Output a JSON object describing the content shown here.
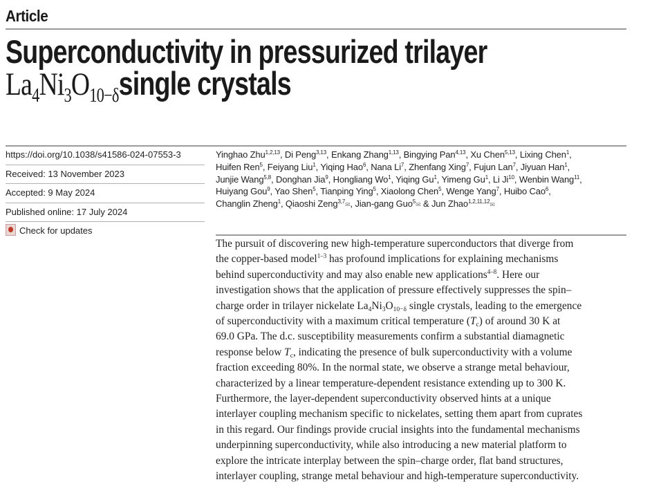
{
  "header": {
    "label": "Article"
  },
  "title": {
    "line1": "Superconductivity in pressurized trilayer",
    "formula": [
      [
        "La",
        ""
      ],
      [
        "4",
        "sub"
      ],
      [
        "Ni",
        ""
      ],
      [
        "3",
        "sub"
      ],
      [
        "O",
        ""
      ],
      [
        "10−δ",
        "sub"
      ]
    ],
    "line2_rest": "single crystals"
  },
  "meta": {
    "doi": "https://doi.org/10.1038/s41586-024-07553-3",
    "received": "Received: 13 November 2023",
    "accepted": "Accepted: 9 May 2024",
    "published": "Published online: 17 July 2024",
    "check_updates": "Check for updates"
  },
  "authors": [
    [
      [
        "Yinghao Zhu",
        ""
      ],
      [
        "1,2,13",
        "sup"
      ],
      [
        ", Di Peng",
        ""
      ],
      [
        "3,13",
        "sup"
      ],
      [
        ", Enkang Zhang",
        ""
      ],
      [
        "1,13",
        "sup"
      ],
      [
        ", Bingying Pan",
        ""
      ],
      [
        "4,13",
        "sup"
      ],
      [
        ", Xu Chen",
        ""
      ],
      [
        "5,13",
        "sup"
      ],
      [
        ", Lixing Chen",
        ""
      ],
      [
        "1",
        "sup"
      ],
      [
        ",",
        ""
      ]
    ],
    [
      [
        "Huifen Ren",
        ""
      ],
      [
        "5",
        "sup"
      ],
      [
        ", Feiyang Liu",
        ""
      ],
      [
        "1",
        "sup"
      ],
      [
        ", Yiqing Hao",
        ""
      ],
      [
        "6",
        "sup"
      ],
      [
        ", Nana Li",
        ""
      ],
      [
        "7",
        "sup"
      ],
      [
        ", Zhenfang Xing",
        ""
      ],
      [
        "7",
        "sup"
      ],
      [
        ", Fujun Lan",
        ""
      ],
      [
        "7",
        "sup"
      ],
      [
        ", Jiyuan Han",
        ""
      ],
      [
        "1",
        "sup"
      ],
      [
        ",",
        ""
      ]
    ],
    [
      [
        "Junjie Wang",
        ""
      ],
      [
        "5,8",
        "sup"
      ],
      [
        ", Donghan Jia",
        ""
      ],
      [
        "9",
        "sup"
      ],
      [
        ", Hongliang Wo",
        ""
      ],
      [
        "1",
        "sup"
      ],
      [
        ", Yiqing Gu",
        ""
      ],
      [
        "1",
        "sup"
      ],
      [
        ", Yimeng Gu",
        ""
      ],
      [
        "1",
        "sup"
      ],
      [
        ", Li Ji",
        ""
      ],
      [
        "10",
        "sup"
      ],
      [
        ", Wenbin Wang",
        ""
      ],
      [
        "11",
        "sup"
      ],
      [
        ",",
        ""
      ]
    ],
    [
      [
        "Huiyang Gou",
        ""
      ],
      [
        "9",
        "sup"
      ],
      [
        ", Yao Shen",
        ""
      ],
      [
        "5",
        "sup"
      ],
      [
        ", Tianping Ying",
        ""
      ],
      [
        "5",
        "sup"
      ],
      [
        ", Xiaolong Chen",
        ""
      ],
      [
        "5",
        "sup"
      ],
      [
        ", Wenge Yang",
        ""
      ],
      [
        "7",
        "sup"
      ],
      [
        ", Huibo Cao",
        ""
      ],
      [
        "6",
        "sup"
      ],
      [
        ",",
        ""
      ]
    ],
    [
      [
        "Changlin Zheng",
        ""
      ],
      [
        "1",
        "sup"
      ],
      [
        ", Qiaoshi Zeng",
        ""
      ],
      [
        "3,7",
        "sup"
      ],
      [
        "✉",
        "mail"
      ],
      [
        ", Jian-gang Guo",
        ""
      ],
      [
        "5",
        "sup"
      ],
      [
        "✉",
        "mail"
      ],
      [
        " & Jun Zhao",
        ""
      ],
      [
        "1,2,11,12",
        "sup"
      ],
      [
        "✉",
        "mail"
      ]
    ]
  ],
  "abstract": [
    [
      [
        "The pursuit of discovering new high-temperature superconductors that diverge from",
        ""
      ]
    ],
    [
      [
        "the copper-based model",
        ""
      ],
      [
        "1–3",
        "sup"
      ],
      [
        " has profound implications for explaining mechanisms",
        ""
      ]
    ],
    [
      [
        "behind superconductivity and may also enable new applications",
        ""
      ],
      [
        "4–8",
        "sup"
      ],
      [
        ". Here our",
        ""
      ]
    ],
    [
      [
        "investigation shows that the application of pressure effectively suppresses the spin–",
        ""
      ]
    ],
    [
      [
        "charge order in trilayer nickelate La",
        ""
      ],
      [
        "4",
        "sub"
      ],
      [
        "Ni",
        ""
      ],
      [
        "3",
        "sub"
      ],
      [
        "O",
        ""
      ],
      [
        "10−δ",
        "sub"
      ],
      [
        " single crystals, leading to the emergence",
        ""
      ]
    ],
    [
      [
        "of superconductivity with a maximum critical temperature (",
        ""
      ],
      [
        "T",
        "i"
      ],
      [
        "c",
        "sub"
      ],
      [
        ") of around 30 K at",
        ""
      ]
    ],
    [
      [
        "69.0 GPa. The d.c. susceptibility measurements confirm a substantial diamagnetic",
        ""
      ]
    ],
    [
      [
        "response below ",
        ""
      ],
      [
        "T",
        "i"
      ],
      [
        "c",
        "sub"
      ],
      [
        ", indicating the presence of bulk superconductivity with a volume",
        ""
      ]
    ],
    [
      [
        "fraction exceeding 80%. In the normal state, we observe a strange metal behaviour,",
        ""
      ]
    ],
    [
      [
        "characterized by a linear temperature-dependent resistance extending up to 300 K.",
        ""
      ]
    ],
    [
      [
        "Furthermore, the layer-dependent superconductivity observed hints at a unique",
        ""
      ]
    ],
    [
      [
        "interlayer coupling mechanism specific to nickelates, setting them apart from cuprates",
        ""
      ]
    ],
    [
      [
        "in this regard. Our findings provide crucial insights into the fundamental mechanisms",
        ""
      ]
    ],
    [
      [
        "underpinning superconductivity, while also introducing a new material platform to",
        ""
      ]
    ],
    [
      [
        "explore the intricate interplay between the spin–charge order, flat band structures,",
        ""
      ]
    ],
    [
      [
        "interlayer coupling, strange metal behaviour and high-temperature superconductivity.",
        ""
      ]
    ]
  ]
}
